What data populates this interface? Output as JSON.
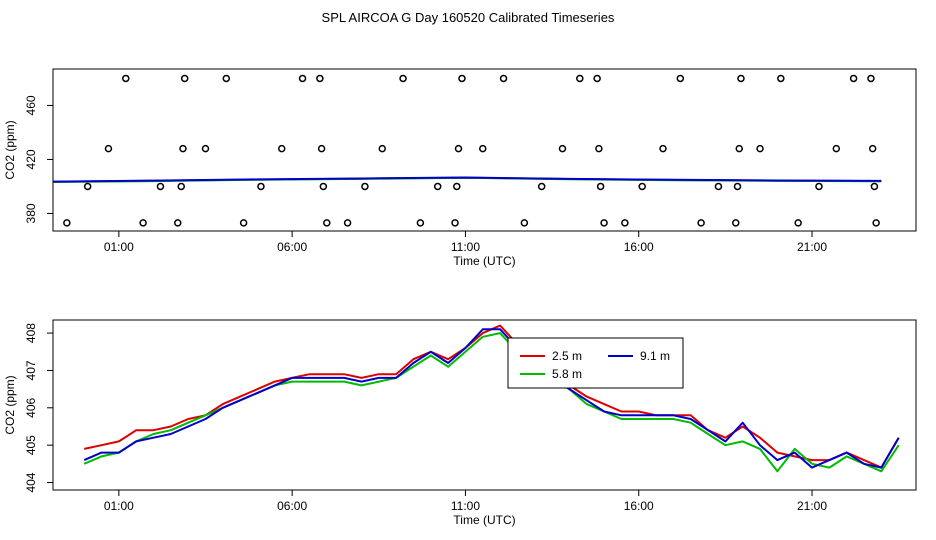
{
  "title": "SPL AIRCOA G  Day 160520  Calibrated Timeseries",
  "colors": {
    "red": "#dd0000",
    "green": "#00bb00",
    "blue": "#0000cc",
    "axis": "#000000"
  },
  "chart_data": [
    {
      "type": "scatter+line",
      "xlabel": "Time (UTC)",
      "ylabel": "CO2 (ppm)",
      "xlim": [
        -0.9,
        24.0
      ],
      "ylim": [
        367,
        487
      ],
      "xticks": [
        {
          "v": 1,
          "label": "01:00"
        },
        {
          "v": 6,
          "label": "06:00"
        },
        {
          "v": 11,
          "label": "11:00"
        },
        {
          "v": 16,
          "label": "16:00"
        },
        {
          "v": 21,
          "label": "21:00"
        }
      ],
      "yticks": [
        380,
        420,
        460
      ],
      "scatter": [
        [
          -0.5,
          373
        ],
        [
          0.1,
          400
        ],
        [
          0.7,
          428
        ],
        [
          1.2,
          480
        ],
        [
          1.7,
          373
        ],
        [
          2.2,
          400
        ],
        [
          2.7,
          373
        ],
        [
          2.8,
          400
        ],
        [
          2.85,
          428
        ],
        [
          2.9,
          480
        ],
        [
          3.5,
          428
        ],
        [
          4.1,
          480
        ],
        [
          4.6,
          373
        ],
        [
          5.1,
          400
        ],
        [
          5.7,
          428
        ],
        [
          6.3,
          480
        ],
        [
          6.8,
          480
        ],
        [
          6.85,
          428
        ],
        [
          6.9,
          400
        ],
        [
          7.0,
          373
        ],
        [
          7.6,
          373
        ],
        [
          8.1,
          400
        ],
        [
          8.6,
          428
        ],
        [
          9.2,
          480
        ],
        [
          9.7,
          373
        ],
        [
          10.2,
          400
        ],
        [
          10.7,
          373
        ],
        [
          10.75,
          400
        ],
        [
          10.8,
          428
        ],
        [
          10.9,
          480
        ],
        [
          11.5,
          428
        ],
        [
          12.1,
          480
        ],
        [
          12.7,
          373
        ],
        [
          13.2,
          400
        ],
        [
          13.8,
          428
        ],
        [
          14.3,
          480
        ],
        [
          14.8,
          480
        ],
        [
          14.85,
          428
        ],
        [
          14.9,
          400
        ],
        [
          15.0,
          373
        ],
        [
          15.6,
          373
        ],
        [
          16.1,
          400
        ],
        [
          16.7,
          428
        ],
        [
          17.2,
          480
        ],
        [
          17.8,
          373
        ],
        [
          18.3,
          400
        ],
        [
          18.8,
          373
        ],
        [
          18.85,
          400
        ],
        [
          18.9,
          428
        ],
        [
          18.95,
          480
        ],
        [
          19.5,
          428
        ],
        [
          20.1,
          480
        ],
        [
          20.6,
          373
        ],
        [
          21.2,
          400
        ],
        [
          21.7,
          428
        ],
        [
          22.2,
          480
        ],
        [
          22.7,
          480
        ],
        [
          22.75,
          428
        ],
        [
          22.8,
          400
        ],
        [
          22.85,
          373
        ]
      ],
      "series": [
        {
          "color": "red",
          "x": [
            -0.9,
            2,
            5,
            8,
            11,
            14,
            17,
            20,
            23
          ],
          "y": [
            403.5,
            404.2,
            405.1,
            405.8,
            406.5,
            405.5,
            404.8,
            404.3,
            404.0
          ]
        },
        {
          "color": "green",
          "x": [
            -0.9,
            2,
            5,
            8,
            11,
            14,
            17,
            20,
            23
          ],
          "y": [
            403.3,
            404.0,
            405.0,
            405.6,
            406.4,
            405.3,
            404.6,
            404.1,
            403.8
          ]
        },
        {
          "color": "blue",
          "x": [
            -0.9,
            2,
            5,
            8,
            11,
            14,
            17,
            20,
            23
          ],
          "y": [
            403.6,
            404.3,
            405.2,
            405.9,
            406.6,
            405.6,
            404.9,
            404.4,
            404.1
          ]
        }
      ]
    },
    {
      "type": "line",
      "xlabel": "Time (UTC)",
      "ylabel": "CO2 (ppm)",
      "xlim": [
        -0.9,
        24.0
      ],
      "ylim": [
        403.8,
        408.35
      ],
      "xticks": [
        {
          "v": 1,
          "label": "01:00"
        },
        {
          "v": 6,
          "label": "06:00"
        },
        {
          "v": 11,
          "label": "11:00"
        },
        {
          "v": 16,
          "label": "16:00"
        },
        {
          "v": 21,
          "label": "21:00"
        }
      ],
      "yticks": [
        404,
        405,
        406,
        407,
        408
      ],
      "legend": {
        "position": "top-center",
        "entries": [
          {
            "label": "2.5 m",
            "color": "red"
          },
          {
            "label": "9.1 m",
            "color": "blue"
          },
          {
            "label": "5.8 m",
            "color": "green"
          }
        ]
      },
      "series": [
        {
          "name": "2.5 m",
          "color": "red",
          "x": [
            0,
            0.5,
            1,
            1.5,
            2,
            2.5,
            3,
            3.5,
            4,
            4.5,
            5,
            5.5,
            6,
            6.5,
            7,
            7.5,
            8,
            8.5,
            9,
            9.5,
            10,
            10.5,
            11,
            11.5,
            12,
            12.5,
            13,
            13.5,
            14,
            14.5,
            15,
            15.5,
            16,
            16.5,
            17,
            17.5,
            18,
            18.5,
            19,
            19.5,
            20,
            20.5,
            21,
            21.5,
            22,
            22.5,
            23,
            23.5
          ],
          "y": [
            404.9,
            405.0,
            405.1,
            405.4,
            405.4,
            405.5,
            405.7,
            405.8,
            406.1,
            406.3,
            406.5,
            406.7,
            406.8,
            406.9,
            406.9,
            406.9,
            406.8,
            406.9,
            406.9,
            407.3,
            407.5,
            407.3,
            407.6,
            408.0,
            408.2,
            407.7,
            407.3,
            406.9,
            406.6,
            406.3,
            406.1,
            405.9,
            405.9,
            405.8,
            405.8,
            405.8,
            405.4,
            405.2,
            405.5,
            405.2,
            404.8,
            404.7,
            404.6,
            404.6,
            404.8,
            404.6,
            404.4,
            405.2
          ]
        },
        {
          "name": "5.8 m",
          "color": "green",
          "x": [
            0,
            0.5,
            1,
            1.5,
            2,
            2.5,
            3,
            3.5,
            4,
            4.5,
            5,
            5.5,
            6,
            6.5,
            7,
            7.5,
            8,
            8.5,
            9,
            9.5,
            10,
            10.5,
            11,
            11.5,
            12,
            12.5,
            13,
            13.5,
            14,
            14.5,
            15,
            15.5,
            16,
            16.5,
            17,
            17.5,
            18,
            18.5,
            19,
            19.5,
            20,
            20.5,
            21,
            21.5,
            22,
            22.5,
            23,
            23.5
          ],
          "y": [
            404.5,
            404.7,
            404.8,
            405.1,
            405.3,
            405.4,
            405.6,
            405.8,
            406.0,
            406.2,
            406.4,
            406.6,
            406.7,
            406.7,
            406.7,
            406.7,
            406.6,
            406.7,
            406.8,
            407.1,
            407.4,
            407.1,
            407.5,
            407.9,
            408.0,
            407.5,
            407.2,
            406.8,
            406.5,
            406.1,
            405.9,
            405.7,
            405.7,
            405.7,
            405.7,
            405.6,
            405.3,
            405.0,
            405.1,
            404.9,
            404.3,
            404.9,
            404.5,
            404.4,
            404.7,
            404.5,
            404.3,
            405.0
          ]
        },
        {
          "name": "9.1 m",
          "color": "blue",
          "x": [
            0,
            0.5,
            1,
            1.5,
            2,
            2.5,
            3,
            3.5,
            4,
            4.5,
            5,
            5.5,
            6,
            6.5,
            7,
            7.5,
            8,
            8.5,
            9,
            9.5,
            10,
            10.5,
            11,
            11.5,
            12,
            12.5,
            13,
            13.5,
            14,
            14.5,
            15,
            15.5,
            16,
            16.5,
            17,
            17.5,
            18,
            18.5,
            19,
            19.5,
            20,
            20.5,
            21,
            21.5,
            22,
            22.5,
            23,
            23.5
          ],
          "y": [
            404.6,
            404.8,
            404.8,
            405.1,
            405.2,
            405.3,
            405.5,
            405.7,
            406.0,
            406.2,
            406.4,
            406.6,
            406.8,
            406.8,
            406.8,
            406.8,
            406.7,
            406.8,
            406.8,
            407.2,
            407.5,
            407.2,
            407.6,
            408.1,
            408.1,
            407.6,
            407.3,
            406.8,
            406.5,
            406.2,
            405.9,
            405.8,
            405.8,
            405.8,
            405.8,
            405.7,
            405.4,
            405.1,
            405.6,
            405.0,
            404.6,
            404.8,
            404.4,
            404.6,
            404.8,
            404.5,
            404.4,
            405.2
          ]
        }
      ]
    }
  ]
}
